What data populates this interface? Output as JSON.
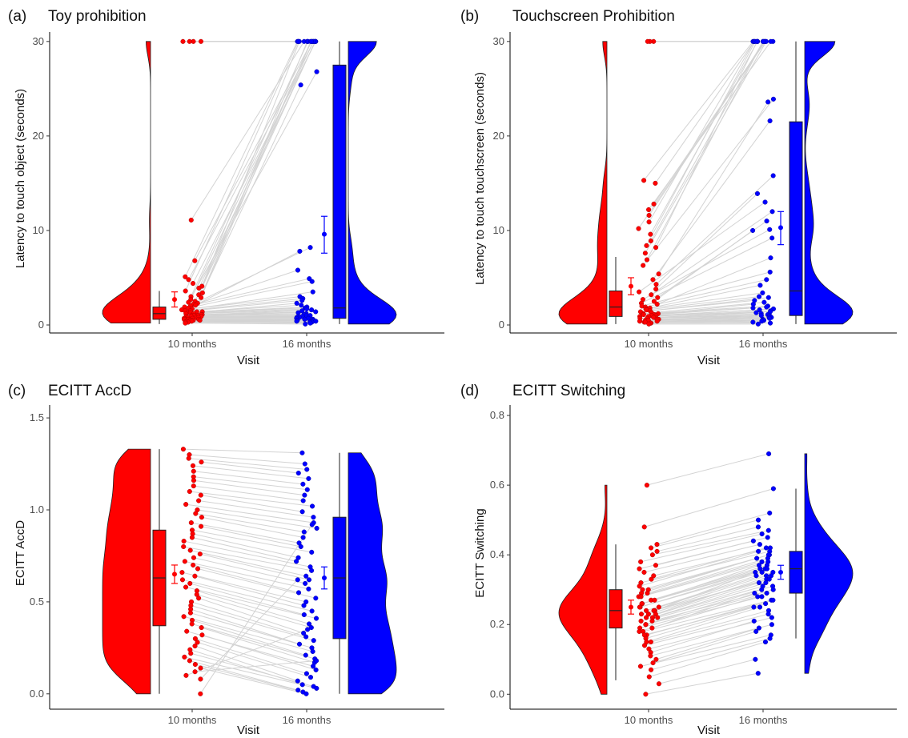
{
  "figure": {
    "colors": {
      "visit1": "#ff0000",
      "visit2": "#0000ff",
      "line": "#d3d3d3",
      "outline": "#222222"
    },
    "palette": [
      "#ff0000",
      "#0000ff"
    ]
  },
  "chart_data": [
    {
      "type": "scatter",
      "panel": "(a)",
      "title": "Toy prohibition",
      "xlabel": "Visit",
      "ylabel": "Latency to touch object (seconds)",
      "categories": [
        "10 months",
        "16 months"
      ],
      "ylim": [
        0,
        31
      ],
      "yticks": [
        "0",
        "10",
        "20",
        "30"
      ],
      "grid": false,
      "box_stats": [
        {
          "visit": "10 months",
          "q1": 0.6,
          "median": 1.2,
          "q3": 1.9,
          "whisker_low": 0.1,
          "whisker_high": 3.6
        },
        {
          "visit": "16 months",
          "q1": 0.7,
          "median": 1.8,
          "q3": 27.5,
          "whisker_low": 0.1,
          "whisker_high": 30
        }
      ],
      "means": [
        {
          "visit": "10 months",
          "mean": 2.7,
          "ci_low": 1.9,
          "ci_high": 3.5
        },
        {
          "visit": "16 months",
          "mean": 9.6,
          "ci_low": 7.6,
          "ci_high": 11.5
        }
      ],
      "series": [
        {
          "name": "10 months",
          "values": [
            30,
            30,
            30,
            30,
            11.1,
            6.8,
            5.1,
            4.8,
            4.4,
            4.1,
            3.9,
            3.6,
            3.4,
            3.2,
            3.0,
            2.9,
            2.7,
            2.5,
            2.4,
            2.3,
            2.2,
            2.1,
            2.0,
            1.9,
            1.8,
            1.7,
            1.6,
            1.5,
            1.5,
            1.4,
            1.4,
            1.3,
            1.3,
            1.2,
            1.2,
            1.1,
            1.1,
            1.0,
            1.0,
            1.0,
            0.9,
            0.9,
            0.9,
            0.8,
            0.8,
            0.8,
            0.7,
            0.7,
            0.7,
            0.6,
            0.6,
            0.6,
            0.5,
            0.5,
            0.5,
            0.4,
            0.4,
            0.3,
            0.3,
            0.2
          ]
        },
        {
          "name": "16 months",
          "values": [
            30,
            30,
            30,
            30,
            30,
            30,
            30,
            30,
            30,
            30,
            30,
            30,
            30,
            30,
            30,
            30,
            30,
            30,
            26.8,
            25.4,
            8.2,
            7.8,
            5.8,
            4.9,
            4.6,
            3.5,
            3.0,
            2.8,
            2.6,
            2.3,
            2.1,
            1.9,
            1.8,
            1.7,
            1.6,
            1.5,
            1.4,
            1.3,
            1.2,
            1.1,
            1.0,
            1.0,
            0.9,
            0.9,
            0.8,
            0.8,
            0.7,
            0.7,
            0.6,
            0.6,
            0.6,
            0.5,
            0.5,
            0.4,
            0.4,
            0.4,
            0.3,
            0.3,
            0.2,
            0.1
          ]
        }
      ]
    },
    {
      "type": "scatter",
      "panel": "(b)",
      "title": "Touchscreen Prohibition",
      "xlabel": "Visit",
      "ylabel": "Latency to touch touchscreen (seconds)",
      "categories": [
        "10 months",
        "16 months"
      ],
      "ylim": [
        0,
        31
      ],
      "yticks": [
        "0",
        "10",
        "20",
        "30"
      ],
      "grid": false,
      "box_stats": [
        {
          "visit": "10 months",
          "q1": 0.9,
          "median": 1.9,
          "q3": 3.6,
          "whisker_low": 0.1,
          "whisker_high": 7.2
        },
        {
          "visit": "16 months",
          "q1": 1.0,
          "median": 3.6,
          "q3": 21.5,
          "whisker_low": 0.1,
          "whisker_high": 30
        }
      ],
      "means": [
        {
          "visit": "10 months",
          "mean": 4.1,
          "ci_low": 3.2,
          "ci_high": 5.0
        },
        {
          "visit": "16 months",
          "mean": 10.3,
          "ci_low": 8.5,
          "ci_high": 12.0
        }
      ],
      "series": [
        {
          "name": "10 months",
          "values": [
            30,
            30,
            30,
            15.3,
            15.0,
            12.8,
            12.2,
            11.6,
            10.9,
            10.2,
            9.6,
            8.9,
            8.4,
            8.2,
            7.6,
            6.9,
            6.3,
            5.4,
            4.8,
            4.3,
            3.8,
            3.5,
            3.2,
            2.9,
            2.7,
            2.5,
            2.3,
            2.2,
            2.0,
            1.9,
            1.8,
            1.7,
            1.6,
            1.5,
            1.4,
            1.3,
            1.2,
            1.2,
            1.1,
            1.1,
            1.0,
            1.0,
            0.9,
            0.9,
            0.8,
            0.8,
            0.7,
            0.7,
            0.6,
            0.6,
            0.5,
            0.5,
            0.5,
            0.4,
            0.4,
            0.3,
            0.3,
            0.2,
            0.2,
            0.1
          ]
        },
        {
          "name": "16 months",
          "values": [
            30,
            30,
            30,
            30,
            30,
            30,
            30,
            30,
            30,
            30,
            30,
            30,
            30,
            30,
            30,
            30,
            23.9,
            23.6,
            21.6,
            15.8,
            13.9,
            13.0,
            12.0,
            11.0,
            10.1,
            10.0,
            9.2,
            7.1,
            5.6,
            4.8,
            4.2,
            3.4,
            3.0,
            2.9,
            2.6,
            2.4,
            2.2,
            2.0,
            1.9,
            1.8,
            1.7,
            1.6,
            1.5,
            1.4,
            1.3,
            1.2,
            1.1,
            1.0,
            1.0,
            0.9,
            0.8,
            0.8,
            0.7,
            0.6,
            0.5,
            0.5,
            0.4,
            0.3,
            0.2,
            0.1
          ]
        }
      ]
    },
    {
      "type": "scatter",
      "panel": "(c)",
      "title": "ECITT AccD",
      "xlabel": "Visit",
      "ylabel": "ECITT AccD",
      "categories": [
        "10 months",
        "16 months"
      ],
      "ylim": [
        -0.04,
        1.57
      ],
      "yticks": [
        "0.0",
        "0.5",
        "1.0",
        "1.5"
      ],
      "grid": false,
      "box_stats": [
        {
          "visit": "10 months",
          "q1": 0.37,
          "median": 0.63,
          "q3": 0.89,
          "whisker_low": 0.0,
          "whisker_high": 1.33
        },
        {
          "visit": "16 months",
          "q1": 0.3,
          "median": 0.63,
          "q3": 0.96,
          "whisker_low": 0.0,
          "whisker_high": 1.31
        }
      ],
      "means": [
        {
          "visit": "10 months",
          "mean": 0.65,
          "ci_low": 0.6,
          "ci_high": 0.7
        },
        {
          "visit": "16 months",
          "mean": 0.63,
          "ci_low": 0.57,
          "ci_high": 0.69
        }
      ],
      "series": [
        {
          "name": "10 months",
          "values": [
            1.33,
            1.3,
            1.28,
            1.26,
            1.24,
            1.21,
            1.18,
            1.16,
            1.13,
            1.1,
            1.08,
            1.05,
            1.03,
            1.0,
            0.98,
            0.96,
            0.93,
            0.91,
            0.89,
            0.87,
            0.85,
            0.83,
            0.8,
            0.78,
            0.76,
            0.74,
            0.72,
            0.7,
            0.68,
            0.66,
            0.64,
            0.62,
            0.6,
            0.58,
            0.56,
            0.54,
            0.52,
            0.5,
            0.48,
            0.46,
            0.44,
            0.42,
            0.4,
            0.38,
            0.36,
            0.34,
            0.32,
            0.3,
            0.28,
            0.26,
            0.24,
            0.22,
            0.2,
            0.18,
            0.16,
            0.14,
            0.12,
            0.1,
            0.08,
            0.0
          ]
        },
        {
          "name": "16 months",
          "values": [
            1.31,
            1.25,
            1.22,
            1.2,
            1.17,
            1.14,
            1.11,
            1.08,
            1.05,
            1.02,
            0.99,
            0.96,
            0.93,
            0.9,
            0.88,
            0.85,
            0.82,
            0.8,
            0.77,
            0.74,
            0.72,
            0.69,
            0.67,
            0.64,
            0.62,
            0.6,
            0.57,
            0.55,
            0.52,
            0.5,
            0.48,
            0.45,
            0.43,
            0.41,
            0.38,
            0.36,
            0.33,
            0.31,
            0.29,
            0.27,
            0.25,
            0.23,
            0.21,
            0.19,
            0.17,
            0.15,
            0.13,
            0.11,
            0.09,
            0.07,
            0.05,
            0.04,
            0.03,
            0.02,
            0.01,
            0.0,
            0.18,
            0.35,
            0.62,
            0.92
          ]
        }
      ]
    },
    {
      "type": "scatter",
      "panel": "(d)",
      "title": "ECITT Switching",
      "xlabel": "Visit",
      "ylabel": "ECITT Switching",
      "categories": [
        "10 months",
        "16 months"
      ],
      "ylim": [
        -0.02,
        0.83
      ],
      "yticks": [
        "0.0",
        "0.2",
        "0.4",
        "0.6",
        "0.8"
      ],
      "grid": false,
      "box_stats": [
        {
          "visit": "10 months",
          "q1": 0.19,
          "median": 0.24,
          "q3": 0.3,
          "whisker_low": 0.04,
          "whisker_high": 0.43
        },
        {
          "visit": "16 months",
          "q1": 0.29,
          "median": 0.36,
          "q3": 0.41,
          "whisker_low": 0.16,
          "whisker_high": 0.59
        }
      ],
      "means": [
        {
          "visit": "10 months",
          "mean": 0.25,
          "ci_low": 0.23,
          "ci_high": 0.27
        },
        {
          "visit": "16 months",
          "mean": 0.35,
          "ci_low": 0.33,
          "ci_high": 0.37
        }
      ],
      "series": [
        {
          "name": "10 months",
          "values": [
            0.6,
            0.48,
            0.43,
            0.42,
            0.41,
            0.4,
            0.38,
            0.37,
            0.36,
            0.35,
            0.34,
            0.33,
            0.32,
            0.31,
            0.3,
            0.3,
            0.29,
            0.29,
            0.28,
            0.28,
            0.27,
            0.27,
            0.26,
            0.26,
            0.25,
            0.25,
            0.25,
            0.24,
            0.24,
            0.24,
            0.23,
            0.23,
            0.23,
            0.22,
            0.22,
            0.22,
            0.21,
            0.21,
            0.2,
            0.2,
            0.19,
            0.19,
            0.18,
            0.18,
            0.17,
            0.17,
            0.16,
            0.15,
            0.15,
            0.14,
            0.13,
            0.12,
            0.11,
            0.1,
            0.09,
            0.08,
            0.07,
            0.05,
            0.03,
            0.0
          ]
        },
        {
          "name": "16 months",
          "values": [
            0.69,
            0.59,
            0.52,
            0.5,
            0.48,
            0.47,
            0.46,
            0.45,
            0.44,
            0.43,
            0.42,
            0.42,
            0.41,
            0.41,
            0.4,
            0.4,
            0.39,
            0.39,
            0.38,
            0.38,
            0.37,
            0.37,
            0.36,
            0.36,
            0.36,
            0.35,
            0.35,
            0.35,
            0.34,
            0.34,
            0.34,
            0.33,
            0.33,
            0.32,
            0.32,
            0.31,
            0.31,
            0.3,
            0.3,
            0.29,
            0.29,
            0.28,
            0.28,
            0.27,
            0.27,
            0.26,
            0.25,
            0.25,
            0.24,
            0.23,
            0.22,
            0.21,
            0.2,
            0.19,
            0.18,
            0.17,
            0.16,
            0.15,
            0.1,
            0.06
          ]
        }
      ]
    }
  ]
}
